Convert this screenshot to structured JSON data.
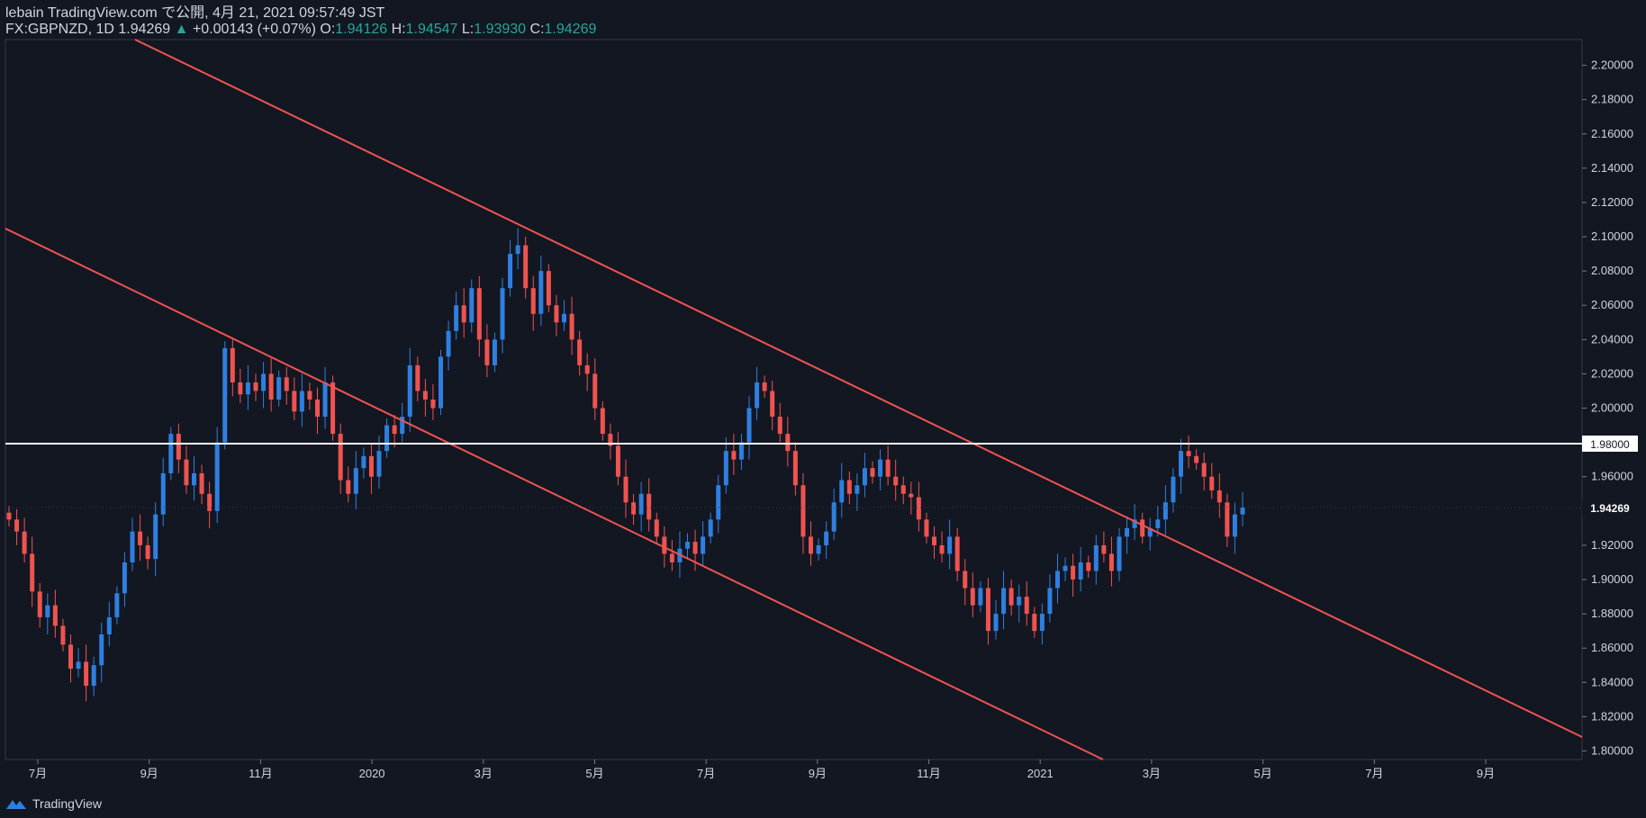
{
  "header": {
    "line1": "lebain TradingView.com で公開, 4月 21, 2021 09:57:49 JST",
    "symbol": "FX:GBPNZD, 1D",
    "last": "1.94269",
    "change_arrow": "▲",
    "change": "+0.00143 (+0.07%)",
    "o_label": "O:",
    "o": "1.94126",
    "h_label": "H:",
    "h": "1.94547",
    "l_label": "L:",
    "l": "1.93930",
    "c_label": "C:",
    "c": "1.94269"
  },
  "footer": {
    "brand": "TradingView"
  },
  "colors": {
    "bg": "#131722",
    "up": "#2f7fe0",
    "down": "#ef5350",
    "trend": "#ef5350",
    "level": "#ffffff",
    "text": "#d1d4dc",
    "grid_border": "#363a45"
  },
  "chart_data": {
    "type": "candlestick",
    "y_ticks": [
      "2.20000",
      "2.18000",
      "2.16000",
      "2.14000",
      "2.12000",
      "2.10000",
      "2.08000",
      "2.06000",
      "2.04000",
      "2.02000",
      "2.00000",
      "1.98000",
      "1.96000",
      "1.94000",
      "1.92000",
      "1.90000",
      "1.88000",
      "1.86000",
      "1.84000",
      "1.82000",
      "1.80000"
    ],
    "x_ticks": [
      "7月",
      "9月",
      "11月",
      "2020",
      "3月",
      "5月",
      "7月",
      "9月",
      "11月",
      "2021",
      "3月",
      "5月",
      "7月",
      "9月"
    ],
    "ylim": [
      1.795,
      2.215
    ],
    "series": [
      {
        "name": "GBPNZD",
        "close_path": [
          1.935,
          1.928,
          1.915,
          1.893,
          1.878,
          1.885,
          1.873,
          1.862,
          1.848,
          1.852,
          1.838,
          1.85,
          1.868,
          1.878,
          1.892,
          1.91,
          1.928,
          1.92,
          1.912,
          1.938,
          1.962,
          1.985,
          1.97,
          1.955,
          1.962,
          1.95,
          1.94,
          1.98,
          2.035,
          2.015,
          2.008,
          2.015,
          2.01,
          2.02,
          2.005,
          2.018,
          2.01,
          1.998,
          2.01,
          2.005,
          1.995,
          2.015,
          1.985,
          1.958,
          1.95,
          1.965,
          1.972,
          1.96,
          1.975,
          1.99,
          1.985,
          1.995,
          2.025,
          2.01,
          2.005,
          2.0,
          2.03,
          2.045,
          2.06,
          2.05,
          2.07,
          2.04,
          2.025,
          2.04,
          2.07,
          2.09,
          2.095,
          2.07,
          2.055,
          2.08,
          2.06,
          2.05,
          2.055,
          2.04,
          2.025,
          2.02,
          2.0,
          1.985,
          1.978,
          1.96,
          1.945,
          1.938,
          1.95,
          1.935,
          1.925,
          1.915,
          1.91,
          1.918,
          1.922,
          1.915,
          1.925,
          1.935,
          1.955,
          1.975,
          1.97,
          1.98,
          2.0,
          2.015,
          2.01,
          1.995,
          1.985,
          1.975,
          1.955,
          1.925,
          1.915,
          1.92,
          1.928,
          1.945,
          1.958,
          1.95,
          1.955,
          1.965,
          1.96,
          1.97,
          1.96,
          1.955,
          1.95,
          1.948,
          1.935,
          1.925,
          1.92,
          1.915,
          1.925,
          1.905,
          1.895,
          1.885,
          1.895,
          1.87,
          1.88,
          1.895,
          1.885,
          1.89,
          1.88,
          1.87,
          1.88,
          1.895,
          1.905,
          1.908,
          1.9,
          1.91,
          1.905,
          1.92,
          1.915,
          1.905,
          1.925,
          1.93,
          1.935,
          1.925,
          1.93,
          1.935,
          1.945,
          1.96,
          1.975,
          1.972,
          1.968,
          1.96,
          1.952,
          1.945,
          1.925,
          1.938,
          1.942
        ]
      }
    ],
    "annotations": {
      "horizontal_level": {
        "label": "1.98000",
        "value": 1.98
      },
      "last_price": {
        "label": "1.94269",
        "value": 1.94269
      }
    }
  }
}
